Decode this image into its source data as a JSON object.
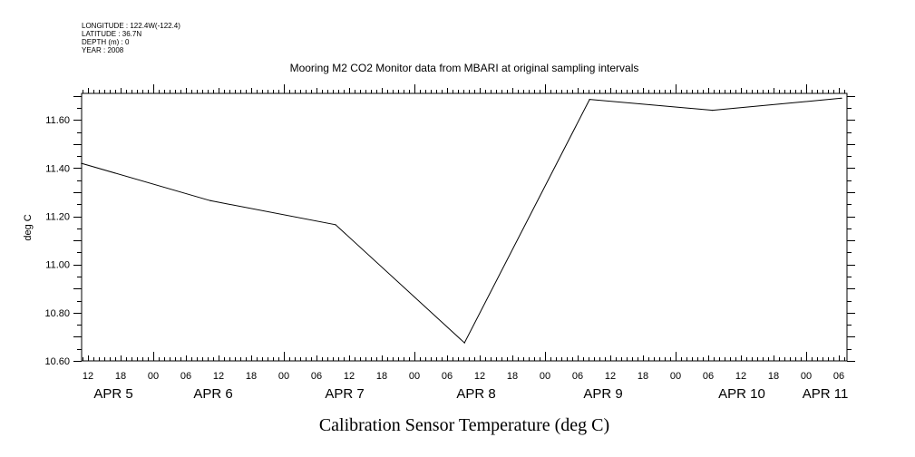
{
  "chart_data": {
    "type": "line",
    "title": "Mooring M2 CO2 Monitor data from MBARI at original sampling intervals",
    "header": [
      "LONGITUDE : 122.4W(-122.4)",
      "LATITUDE : 36.7N",
      "DEPTH (m) : 0",
      "YEAR : 2008"
    ],
    "xlabel": "Calibration Sensor Temperature (deg C)",
    "ylabel": "deg C",
    "x_units": "hours since APR 5 00:00",
    "xlim": [
      10.83,
      151.5
    ],
    "ylim": [
      10.6,
      11.71
    ],
    "x_hour_ticks": [
      12,
      18,
      0,
      6,
      12,
      18,
      0,
      6,
      12,
      18,
      0,
      6,
      12,
      18,
      0,
      6,
      12,
      18,
      0,
      6,
      12,
      18,
      0,
      6
    ],
    "x_hour_tick_labels": [
      "12",
      "18",
      "00",
      "06",
      "12",
      "18",
      "00",
      "06",
      "12",
      "18",
      "00",
      "06",
      "12",
      "18",
      "00",
      "06",
      "12",
      "18",
      "00",
      "06",
      "12",
      "18",
      "00",
      "06"
    ],
    "day_labels": [
      {
        "label": "APR  5",
        "hour": 24
      },
      {
        "label": "APR  6",
        "hour": 48
      },
      {
        "label": "APR  7",
        "hour": 72
      },
      {
        "label": "APR  8",
        "hour": 96
      },
      {
        "label": "APR  9",
        "hour": 120
      },
      {
        "label": "APR 10",
        "hour": 144
      },
      {
        "label": "APR 11",
        "hour": 168
      }
    ],
    "y_ticks": [
      10.6,
      10.8,
      11.0,
      11.2,
      11.4,
      11.6
    ],
    "y_tick_labels": [
      "10.60",
      "10.80",
      "11.00",
      "11.20",
      "11.40",
      "11.60"
    ],
    "series": [
      {
        "name": "Calibration Sensor Temperature",
        "x": [
          10.8,
          34.5,
          57.5,
          81.2,
          104.2,
          126.8,
          150.5
        ],
        "y": [
          11.42,
          11.265,
          11.165,
          10.675,
          11.685,
          11.64,
          11.69
        ]
      }
    ],
    "grid": false
  }
}
